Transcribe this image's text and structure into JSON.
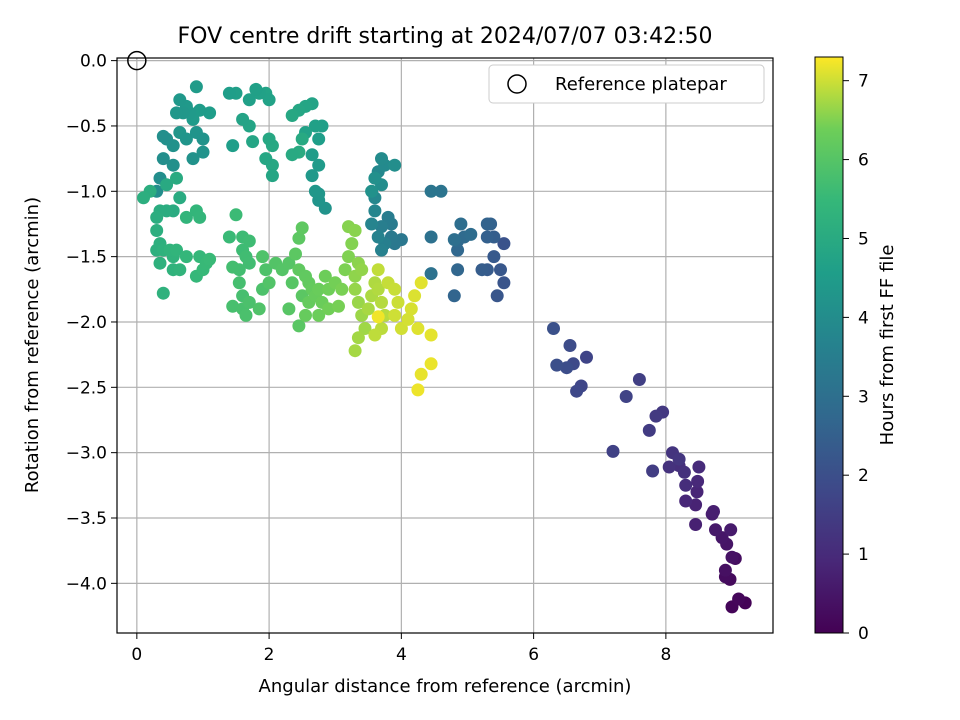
{
  "chart_data": {
    "type": "scatter",
    "title": "FOV centre drift starting at 2024/07/07 03:42:50",
    "xlabel": "Angular distance from reference (arcmin)",
    "ylabel": "Rotation from reference (arcmin)",
    "xlim": [
      -0.3,
      9.62
    ],
    "ylim": [
      -4.38,
      0.02
    ],
    "xticks": [
      0,
      2,
      4,
      6,
      8
    ],
    "yticks": [
      0.0,
      -0.5,
      -1.0,
      -1.5,
      -2.0,
      -2.5,
      -3.0,
      -3.5,
      -4.0
    ],
    "xtick_labels": [
      "0",
      "2",
      "4",
      "6",
      "8"
    ],
    "ytick_labels": [
      "0.0",
      "−0.5",
      "−1.0",
      "−1.5",
      "−2.0",
      "−2.5",
      "−3.0",
      "−3.5",
      "−4.0"
    ],
    "grid": true,
    "legend": {
      "position": "top-right",
      "entries": [
        {
          "label": "Reference platepar",
          "marker": "open-circle"
        }
      ]
    },
    "reference_point": {
      "x": 0,
      "y": 0
    },
    "colorbar": {
      "label": "Hours from first FF file",
      "colormap": "viridis",
      "min": 0,
      "max": 7.3,
      "ticks": [
        0,
        1,
        2,
        3,
        4,
        5,
        6,
        7
      ],
      "tick_labels": [
        "0",
        "1",
        "2",
        "3",
        "4",
        "5",
        "6",
        "7"
      ]
    },
    "points": [
      [
        9.2,
        -4.15,
        0.05
      ],
      [
        9.0,
        -4.18,
        0.1
      ],
      [
        9.1,
        -4.12,
        0.15
      ],
      [
        8.97,
        -3.97,
        0.2
      ],
      [
        8.9,
        -3.95,
        0.25
      ],
      [
        9.05,
        -3.81,
        0.3
      ],
      [
        8.9,
        -3.9,
        0.35
      ],
      [
        9.0,
        -3.8,
        0.4
      ],
      [
        8.92,
        -3.7,
        0.45
      ],
      [
        8.85,
        -3.65,
        0.5
      ],
      [
        8.75,
        -3.59,
        0.55
      ],
      [
        8.98,
        -3.59,
        0.6
      ],
      [
        8.7,
        -3.47,
        0.65
      ],
      [
        8.72,
        -3.45,
        0.7
      ],
      [
        8.45,
        -3.55,
        0.75
      ],
      [
        8.45,
        -3.4,
        0.8
      ],
      [
        8.47,
        -3.3,
        0.85
      ],
      [
        8.3,
        -3.37,
        0.9
      ],
      [
        8.48,
        -3.22,
        0.95
      ],
      [
        8.5,
        -3.11,
        1.0
      ],
      [
        8.3,
        -3.25,
        1.05
      ],
      [
        8.2,
        -3.1,
        1.1
      ],
      [
        8.28,
        -3.15,
        1.15
      ],
      [
        8.05,
        -3.11,
        1.2
      ],
      [
        8.1,
        -3.0,
        1.25
      ],
      [
        8.2,
        -3.05,
        1.3
      ],
      [
        7.95,
        -2.69,
        1.35
      ],
      [
        7.85,
        -2.72,
        1.4
      ],
      [
        7.75,
        -2.83,
        1.45
      ],
      [
        7.8,
        -3.14,
        1.5
      ],
      [
        7.6,
        -2.44,
        1.55
      ],
      [
        7.2,
        -2.99,
        1.6
      ],
      [
        7.4,
        -2.57,
        1.65
      ],
      [
        6.8,
        -2.27,
        1.7
      ],
      [
        6.72,
        -2.49,
        1.75
      ],
      [
        6.65,
        -2.53,
        1.8
      ],
      [
        6.6,
        -2.32,
        1.85
      ],
      [
        6.55,
        -2.18,
        1.9
      ],
      [
        6.5,
        -2.35,
        1.95
      ],
      [
        6.35,
        -2.33,
        2.0
      ],
      [
        6.3,
        -2.05,
        2.05
      ],
      [
        5.55,
        -1.4,
        2.1
      ],
      [
        5.55,
        -1.7,
        2.15
      ],
      [
        5.45,
        -1.8,
        2.2
      ],
      [
        5.5,
        -1.6,
        2.25
      ],
      [
        5.4,
        -1.5,
        2.3
      ],
      [
        5.3,
        -1.6,
        2.35
      ],
      [
        5.22,
        -1.6,
        2.4
      ],
      [
        5.4,
        -1.35,
        2.45
      ],
      [
        5.3,
        -1.35,
        2.5
      ],
      [
        5.35,
        -1.25,
        2.55
      ],
      [
        5.3,
        -1.25,
        2.6
      ],
      [
        4.8,
        -1.8,
        2.65
      ],
      [
        4.85,
        -1.6,
        2.7
      ],
      [
        4.85,
        -1.45,
        2.75
      ],
      [
        4.85,
        -1.38,
        2.8
      ],
      [
        4.95,
        -1.35,
        2.85
      ],
      [
        5.05,
        -1.33,
        2.9
      ],
      [
        4.9,
        -1.25,
        2.95
      ],
      [
        4.8,
        -1.37,
        3.0
      ],
      [
        4.45,
        -1.35,
        3.05
      ],
      [
        4.45,
        -1.63,
        3.1
      ],
      [
        4.6,
        -1.0,
        3.15
      ],
      [
        4.45,
        -1.0,
        3.2
      ],
      [
        4.0,
        -1.37,
        3.25
      ],
      [
        3.9,
        -1.4,
        3.3
      ],
      [
        3.85,
        -1.35,
        3.35
      ],
      [
        3.85,
        -1.25,
        3.4
      ],
      [
        3.8,
        -1.2,
        3.45
      ],
      [
        3.7,
        -1.27,
        3.5
      ],
      [
        3.75,
        -1.4,
        3.55
      ],
      [
        3.7,
        -1.45,
        3.6
      ],
      [
        3.65,
        -1.35,
        3.65
      ],
      [
        3.55,
        -1.25,
        3.7
      ],
      [
        3.6,
        -1.15,
        3.75
      ],
      [
        3.6,
        -1.05,
        3.8
      ],
      [
        3.65,
        -0.85,
        3.85
      ],
      [
        3.75,
        -0.8,
        3.9
      ],
      [
        3.7,
        -0.75,
        3.95
      ],
      [
        3.7,
        -0.95,
        4.0
      ],
      [
        3.9,
        -0.8,
        4.05
      ],
      [
        3.6,
        -0.9,
        4.1
      ],
      [
        3.55,
        -1.0,
        4.15
      ],
      [
        2.85,
        -1.13,
        4.2
      ],
      [
        2.75,
        -1.07,
        4.25
      ],
      [
        2.75,
        -1.02,
        4.3
      ],
      [
        2.7,
        -1.0,
        4.35
      ],
      [
        2.65,
        -0.88,
        4.4
      ],
      [
        2.75,
        -0.8,
        4.45
      ],
      [
        2.65,
        -0.72,
        4.5
      ],
      [
        2.75,
        -0.6,
        4.55
      ],
      [
        2.8,
        -0.5,
        4.6
      ],
      [
        2.7,
        -0.5,
        4.65
      ],
      [
        2.55,
        -0.55,
        4.7
      ],
      [
        2.65,
        -0.33,
        4.75
      ],
      [
        2.55,
        -0.35,
        4.8
      ],
      [
        2.45,
        -0.38,
        4.85
      ],
      [
        2.35,
        -0.42,
        4.9
      ],
      [
        2.5,
        -0.6,
        4.95
      ],
      [
        2.45,
        -0.7,
        5.0
      ],
      [
        2.35,
        -0.72,
        4.98
      ],
      [
        2.05,
        -0.65,
        4.93
      ],
      [
        2.05,
        -0.8,
        4.9
      ],
      [
        2.0,
        -0.6,
        4.88
      ],
      [
        1.95,
        -0.75,
        4.85
      ],
      [
        2.05,
        -0.88,
        4.83
      ],
      [
        1.75,
        -0.62,
        4.8
      ],
      [
        1.7,
        -0.5,
        4.78
      ],
      [
        1.6,
        -0.45,
        4.75
      ],
      [
        1.95,
        -0.25,
        4.73
      ],
      [
        2.0,
        -0.3,
        4.7
      ],
      [
        1.85,
        -0.25,
        4.68
      ],
      [
        1.8,
        -0.22,
        4.65
      ],
      [
        1.7,
        -0.3,
        4.63
      ],
      [
        1.5,
        -0.25,
        4.6
      ],
      [
        1.4,
        -0.25,
        4.58
      ],
      [
        1.45,
        -0.65,
        4.55
      ],
      [
        1.1,
        -0.4,
        4.53
      ],
      [
        0.95,
        -0.38,
        4.5
      ],
      [
        0.9,
        -0.2,
        4.48
      ],
      [
        0.85,
        -0.45,
        4.45
      ],
      [
        0.8,
        -0.4,
        4.42
      ],
      [
        0.75,
        -0.35,
        4.4
      ],
      [
        0.65,
        -0.3,
        4.37
      ],
      [
        0.7,
        -0.4,
        4.35
      ],
      [
        0.6,
        -0.4,
        4.32
      ],
      [
        0.65,
        -0.55,
        4.3
      ],
      [
        0.75,
        -0.6,
        4.28
      ],
      [
        0.9,
        -0.55,
        4.25
      ],
      [
        1.0,
        -0.6,
        4.22
      ],
      [
        1.0,
        -0.7,
        4.2
      ],
      [
        0.85,
        -0.75,
        4.18
      ],
      [
        0.55,
        -0.65,
        4.15
      ],
      [
        0.55,
        -0.8,
        4.12
      ],
      [
        0.45,
        -0.6,
        4.1
      ],
      [
        0.4,
        -0.58,
        4.08
      ],
      [
        0.4,
        -0.75,
        4.05
      ],
      [
        0.35,
        -0.9,
        4.03
      ],
      [
        0.3,
        -1.0,
        4.0
      ],
      [
        0.45,
        -0.95,
        4.98
      ],
      [
        0.6,
        -0.9,
        5.0
      ],
      [
        0.65,
        -1.05,
        5.02
      ],
      [
        0.55,
        -1.15,
        5.04
      ],
      [
        0.45,
        -1.15,
        5.06
      ],
      [
        0.35,
        -1.15,
        5.08
      ],
      [
        0.3,
        -1.2,
        5.1
      ],
      [
        0.2,
        -1.0,
        5.12
      ],
      [
        0.1,
        -1.05,
        5.14
      ],
      [
        0.3,
        -1.3,
        5.16
      ],
      [
        0.35,
        -1.4,
        5.18
      ],
      [
        0.3,
        -1.45,
        5.2
      ],
      [
        0.35,
        -1.55,
        5.22
      ],
      [
        0.4,
        -1.45,
        5.24
      ],
      [
        0.4,
        -1.78,
        5.26
      ],
      [
        0.55,
        -1.6,
        5.28
      ],
      [
        0.55,
        -1.5,
        5.3
      ],
      [
        0.5,
        -1.45,
        5.32
      ],
      [
        0.65,
        -1.6,
        5.34
      ],
      [
        0.6,
        -1.45,
        5.36
      ],
      [
        0.75,
        -1.2,
        5.38
      ],
      [
        0.9,
        -1.15,
        5.4
      ],
      [
        0.95,
        -1.2,
        5.42
      ],
      [
        0.75,
        -1.5,
        5.44
      ],
      [
        0.9,
        -1.65,
        5.46
      ],
      [
        0.95,
        -1.5,
        5.48
      ],
      [
        1.0,
        -1.6,
        5.5
      ],
      [
        1.05,
        -1.55,
        5.52
      ],
      [
        1.1,
        -1.52,
        5.54
      ],
      [
        1.4,
        -1.35,
        5.56
      ],
      [
        1.5,
        -1.18,
        5.58
      ],
      [
        1.6,
        -1.35,
        5.6
      ],
      [
        1.6,
        -1.45,
        5.62
      ],
      [
        1.7,
        -1.38,
        5.64
      ],
      [
        1.65,
        -1.5,
        5.66
      ],
      [
        1.7,
        -1.55,
        5.68
      ],
      [
        1.55,
        -1.6,
        5.7
      ],
      [
        1.45,
        -1.58,
        5.72
      ],
      [
        1.55,
        -1.7,
        5.74
      ],
      [
        1.6,
        -1.8,
        5.76
      ],
      [
        1.45,
        -1.88,
        5.78
      ],
      [
        1.6,
        -1.9,
        5.8
      ],
      [
        1.65,
        -1.95,
        5.82
      ],
      [
        1.7,
        -1.85,
        5.84
      ],
      [
        1.9,
        -1.75,
        5.86
      ],
      [
        1.95,
        -1.6,
        5.88
      ],
      [
        1.9,
        -1.5,
        5.9
      ],
      [
        1.85,
        -1.9,
        5.92
      ],
      [
        2.0,
        -1.7,
        5.94
      ],
      [
        2.1,
        -1.55,
        5.96
      ],
      [
        2.2,
        -1.6,
        5.98
      ],
      [
        2.3,
        -1.55,
        6.0
      ],
      [
        2.35,
        -1.7,
        6.02
      ],
      [
        2.3,
        -1.9,
        6.04
      ],
      [
        2.45,
        -2.03,
        6.06
      ],
      [
        2.5,
        -1.8,
        6.08
      ],
      [
        2.4,
        -1.48,
        6.1
      ],
      [
        2.45,
        -1.36,
        6.12
      ],
      [
        2.5,
        -1.28,
        6.14
      ],
      [
        2.45,
        -1.6,
        6.16
      ],
      [
        2.55,
        -1.65,
        6.18
      ],
      [
        2.6,
        -1.7,
        6.2
      ],
      [
        2.65,
        -1.75,
        6.22
      ],
      [
        2.6,
        -1.85,
        6.24
      ],
      [
        2.55,
        -1.95,
        6.26
      ],
      [
        2.7,
        -1.8,
        6.28
      ],
      [
        2.75,
        -1.75,
        6.3
      ],
      [
        2.8,
        -1.85,
        6.32
      ],
      [
        2.75,
        -1.95,
        6.34
      ],
      [
        2.85,
        -1.65,
        6.36
      ],
      [
        2.9,
        -1.75,
        6.38
      ],
      [
        2.9,
        -1.9,
        6.4
      ],
      [
        3.0,
        -1.7,
        6.42
      ],
      [
        3.05,
        -1.88,
        6.44
      ],
      [
        3.1,
        -1.75,
        6.46
      ],
      [
        3.15,
        -1.6,
        6.48
      ],
      [
        3.2,
        -1.5,
        6.5
      ],
      [
        3.25,
        -1.4,
        6.52
      ],
      [
        3.2,
        -1.27,
        6.54
      ],
      [
        3.3,
        -1.3,
        6.56
      ],
      [
        3.35,
        -1.55,
        6.58
      ],
      [
        3.3,
        -1.65,
        6.6
      ],
      [
        3.4,
        -1.6,
        6.62
      ],
      [
        3.3,
        -1.75,
        6.64
      ],
      [
        3.35,
        -1.85,
        6.66
      ],
      [
        3.4,
        -1.95,
        6.68
      ],
      [
        3.45,
        -2.05,
        6.7
      ],
      [
        3.35,
        -2.12,
        6.72
      ],
      [
        3.3,
        -2.22,
        6.74
      ],
      [
        3.5,
        -1.9,
        6.76
      ],
      [
        3.55,
        -1.8,
        6.78
      ],
      [
        3.6,
        -1.7,
        6.8
      ],
      [
        3.65,
        -1.75,
        6.82
      ],
      [
        3.7,
        -1.85,
        6.84
      ],
      [
        3.75,
        -1.95,
        6.86
      ],
      [
        3.7,
        -2.05,
        6.88
      ],
      [
        3.6,
        -2.1,
        6.9
      ],
      [
        3.65,
        -1.6,
        6.92
      ],
      [
        3.8,
        -1.7,
        6.94
      ],
      [
        3.9,
        -1.75,
        6.96
      ],
      [
        3.95,
        -1.85,
        6.98
      ],
      [
        3.9,
        -1.95,
        7.0
      ],
      [
        4.0,
        -2.05,
        7.02
      ],
      [
        4.1,
        -1.98,
        7.04
      ],
      [
        4.15,
        -1.9,
        7.06
      ],
      [
        4.2,
        -1.8,
        7.08
      ],
      [
        4.25,
        -2.05,
        7.1
      ],
      [
        4.3,
        -1.7,
        7.12
      ],
      [
        4.45,
        -2.1,
        7.14
      ],
      [
        4.3,
        -2.4,
        7.16
      ],
      [
        4.45,
        -2.32,
        7.18
      ],
      [
        4.25,
        -2.52,
        7.2
      ],
      [
        3.65,
        -1.96,
        7.22
      ]
    ]
  }
}
